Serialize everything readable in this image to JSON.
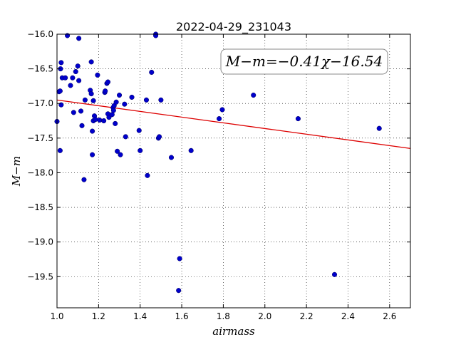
{
  "chart_data": {
    "type": "scatter",
    "title": "2022-04-29_231043",
    "xlabel": "airmass",
    "ylabel": "M−m",
    "xlim": [
      1.0,
      2.7
    ],
    "ylim": [
      -16.0,
      -19.95
    ],
    "y_inverted": true,
    "grid": true,
    "x_ticks": [
      1.0,
      1.2,
      1.4,
      1.6,
      1.8,
      2.0,
      2.2,
      2.4,
      2.6
    ],
    "x_tick_labels": [
      "1.0",
      "1.2",
      "1.4",
      "1.6",
      "1.8",
      "2.0",
      "2.2",
      "2.4",
      "2.6"
    ],
    "y_ticks": [
      -16.0,
      -16.5,
      -17.0,
      -17.5,
      -18.0,
      -18.5,
      -19.0,
      -19.5
    ],
    "y_tick_labels": [
      "−16.0",
      "−16.5",
      "−17.0",
      "−17.5",
      "−18.0",
      "−18.5",
      "−19.0",
      "−19.5"
    ],
    "annotation": "M−m=−0.41χ−16.54",
    "point_color": "#0000cc",
    "fit_color": "#dd0000",
    "series": [
      {
        "type": "scatter",
        "points": [
          [
            1.0,
            -17.26
          ],
          [
            1.01,
            -16.83
          ],
          [
            1.015,
            -16.82
          ],
          [
            1.015,
            -17.68
          ],
          [
            1.017,
            -16.5
          ],
          [
            1.02,
            -16.41
          ],
          [
            1.02,
            -17.02
          ],
          [
            1.025,
            -16.63
          ],
          [
            1.04,
            -16.63
          ],
          [
            1.05,
            -16.02
          ],
          [
            1.065,
            -16.74
          ],
          [
            1.075,
            -16.63
          ],
          [
            1.08,
            -17.13
          ],
          [
            1.09,
            -16.54
          ],
          [
            1.1,
            -16.46
          ],
          [
            1.105,
            -16.67
          ],
          [
            1.105,
            -16.06
          ],
          [
            1.115,
            -17.11
          ],
          [
            1.12,
            -17.32
          ],
          [
            1.13,
            -18.1
          ],
          [
            1.135,
            -16.95
          ],
          [
            1.16,
            -16.81
          ],
          [
            1.165,
            -16.4
          ],
          [
            1.165,
            -16.86
          ],
          [
            1.17,
            -17.4
          ],
          [
            1.17,
            -17.74
          ],
          [
            1.175,
            -16.96
          ],
          [
            1.175,
            -17.25
          ],
          [
            1.18,
            -17.18
          ],
          [
            1.185,
            -17.23
          ],
          [
            1.195,
            -16.59
          ],
          [
            1.205,
            -17.24
          ],
          [
            1.225,
            -17.25
          ],
          [
            1.23,
            -16.84
          ],
          [
            1.232,
            -16.82
          ],
          [
            1.24,
            -16.71
          ],
          [
            1.245,
            -16.69
          ],
          [
            1.245,
            -17.15
          ],
          [
            1.25,
            -17.2
          ],
          [
            1.265,
            -17.16
          ],
          [
            1.27,
            -17.06
          ],
          [
            1.272,
            -17.1
          ],
          [
            1.275,
            -17.03
          ],
          [
            1.28,
            -17.29
          ],
          [
            1.285,
            -16.98
          ],
          [
            1.29,
            -17.69
          ],
          [
            1.3,
            -16.88
          ],
          [
            1.305,
            -17.74
          ],
          [
            1.325,
            -17.01
          ],
          [
            1.33,
            -17.48
          ],
          [
            1.36,
            -16.91
          ],
          [
            1.395,
            -17.39
          ],
          [
            1.4,
            -17.68
          ],
          [
            1.43,
            -16.95
          ],
          [
            1.435,
            -18.04
          ],
          [
            1.455,
            -16.55
          ],
          [
            1.475,
            -16.0
          ],
          [
            1.475,
            -16.02
          ],
          [
            1.488,
            -17.5
          ],
          [
            1.492,
            -17.48
          ],
          [
            1.5,
            -16.95
          ],
          [
            1.55,
            -17.78
          ],
          [
            1.585,
            -19.7
          ],
          [
            1.59,
            -19.24
          ],
          [
            1.645,
            -17.68
          ],
          [
            1.78,
            -17.22
          ],
          [
            1.795,
            -17.09
          ],
          [
            1.945,
            -16.88
          ],
          [
            2.16,
            -17.22
          ],
          [
            2.335,
            -19.47
          ],
          [
            2.55,
            -17.36
          ]
        ]
      },
      {
        "type": "line",
        "points": [
          [
            1.0,
            -16.95
          ],
          [
            2.7,
            -17.65
          ]
        ]
      }
    ]
  }
}
